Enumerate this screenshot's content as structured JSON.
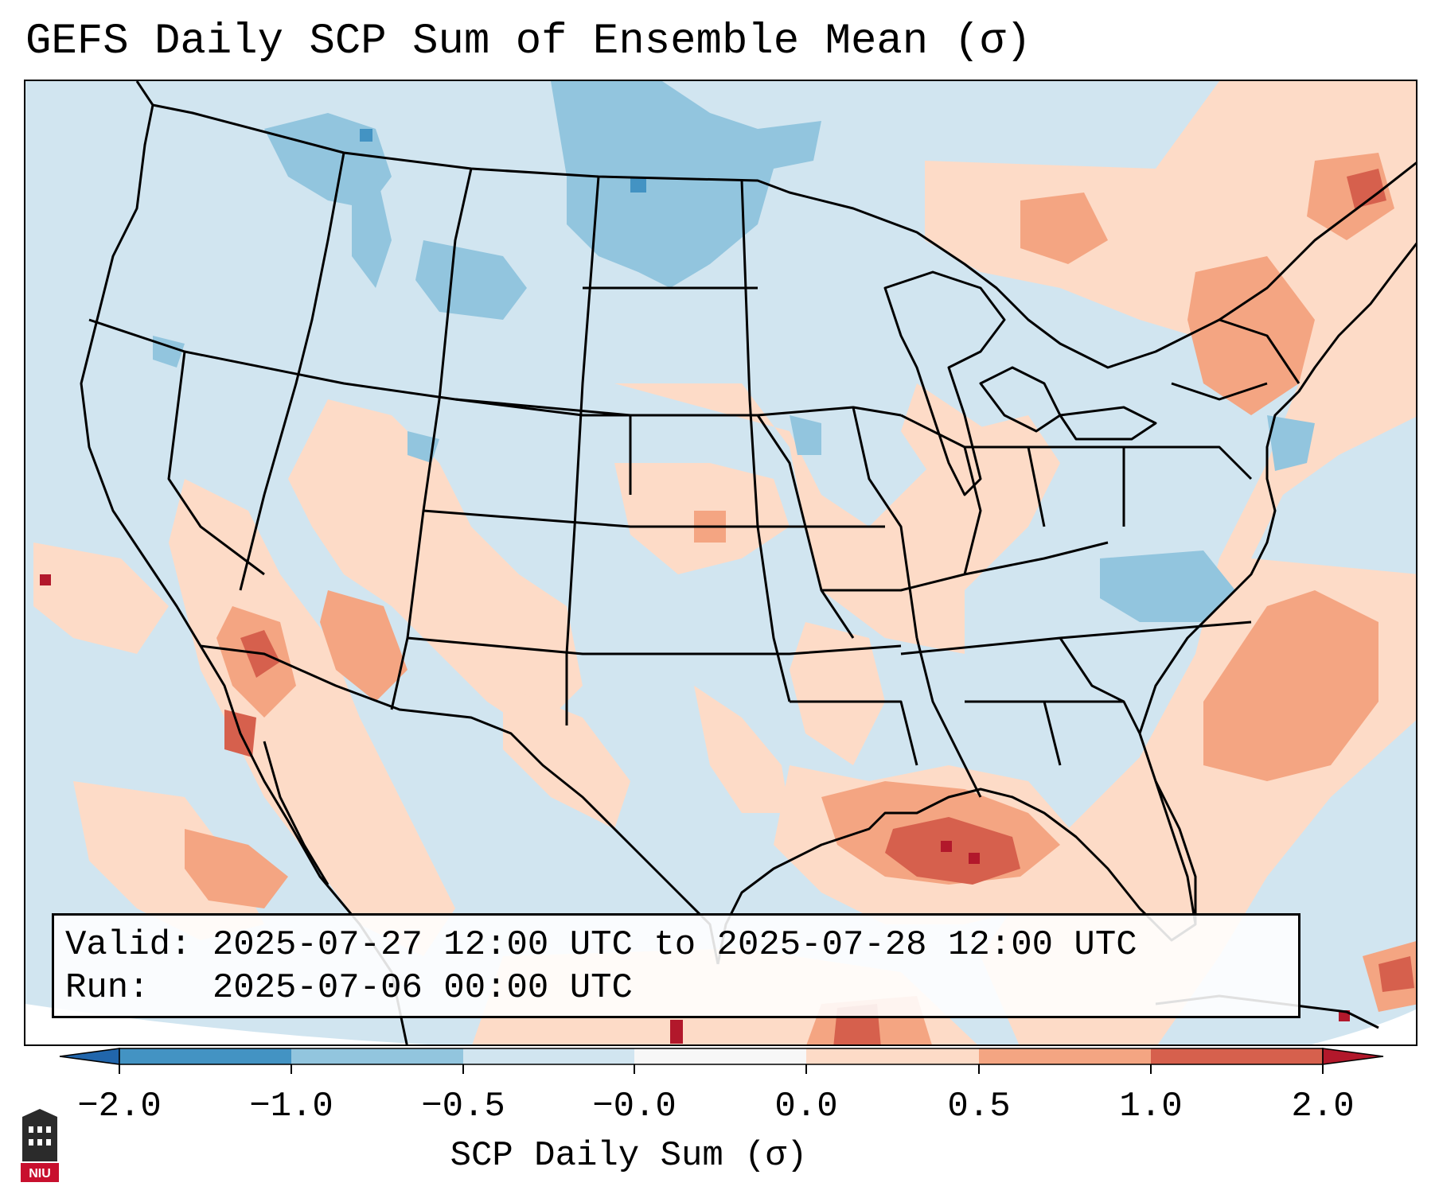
{
  "title": "GEFS Daily SCP Sum of Ensemble Mean (σ)",
  "info": {
    "valid_label": "Valid:",
    "valid_value": "2025-07-27 12:00 UTC to 2025-07-28 12:00 UTC",
    "run_label": "Run:",
    "run_value": "2025-07-06 00:00 UTC"
  },
  "colorbar": {
    "title": "SCP Daily Sum (σ)",
    "tick_labels": [
      "−2.0",
      "−1.0",
      "−0.5",
      "−0.0",
      "0.0",
      "0.5",
      "1.0",
      "2.0"
    ],
    "bins": [
      {
        "from": -2.0,
        "to": -1.0,
        "color": "#4393c3"
      },
      {
        "from": -1.0,
        "to": -0.5,
        "color": "#92c5de"
      },
      {
        "from": -0.5,
        "to": -0.0,
        "color": "#d1e5f0"
      },
      {
        "from": -0.0,
        "to": 0.0,
        "color": "#f7f7f7"
      },
      {
        "from": 0.0,
        "to": 0.5,
        "color": "#fddbc7"
      },
      {
        "from": 0.5,
        "to": 1.0,
        "color": "#f4a582"
      },
      {
        "from": 1.0,
        "to": 2.0,
        "color": "#d6604d"
      }
    ],
    "under_color": "#2166ac",
    "over_color": "#b2182b"
  },
  "map": {
    "region": "Contiguous United States",
    "field": "SCP daily sum anomaly",
    "background_color": "#d1e5f0",
    "border_color": "#000000"
  },
  "logo": {
    "label": "NIU"
  }
}
